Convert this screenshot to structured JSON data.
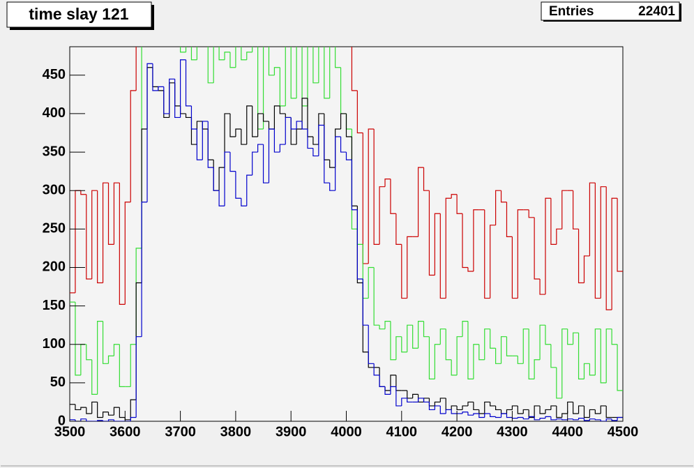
{
  "chart_data": {
    "type": "histogram",
    "title": "time slay 121",
    "stats": {
      "label": "Entries",
      "value": 22401
    },
    "bins": [
      3500,
      3510,
      3520,
      3530,
      3540,
      3550,
      3560,
      3570,
      3580,
      3590,
      3600,
      3610,
      3620,
      3630,
      3640,
      3650,
      3660,
      3670,
      3680,
      3690,
      3700,
      3710,
      3720,
      3730,
      3740,
      3750,
      3760,
      3770,
      3780,
      3790,
      3800,
      3810,
      3820,
      3830,
      3840,
      3850,
      3860,
      3870,
      3880,
      3890,
      3900,
      3910,
      3920,
      3930,
      3940,
      3950,
      3960,
      3970,
      3980,
      3990,
      4000,
      4010,
      4020,
      4030,
      4040,
      4050,
      4060,
      4070,
      4080,
      4090,
      4100,
      4110,
      4120,
      4130,
      4140,
      4150,
      4160,
      4170,
      4180,
      4190,
      4200,
      4210,
      4220,
      4230,
      4240,
      4250,
      4260,
      4270,
      4280,
      4290,
      4300,
      4310,
      4320,
      4330,
      4340,
      4350,
      4360,
      4370,
      4380,
      4390,
      4400,
      4410,
      4420,
      4430,
      4440,
      4450,
      4460,
      4470,
      4480,
      4490,
      4500
    ],
    "series": [
      {
        "color": "#cc0000",
        "values": [
          167,
          300,
          295,
          185,
          300,
          180,
          310,
          230,
          310,
          152,
          285,
          430,
          500,
          500,
          500,
          500,
          500,
          500,
          500,
          500,
          500,
          500,
          500,
          500,
          500,
          500,
          500,
          500,
          500,
          500,
          500,
          500,
          500,
          500,
          500,
          500,
          500,
          500,
          500,
          500,
          500,
          500,
          500,
          500,
          500,
          500,
          500,
          500,
          500,
          500,
          500,
          430,
          375,
          205,
          380,
          230,
          305,
          315,
          270,
          230,
          160,
          240,
          240,
          330,
          300,
          190,
          270,
          160,
          290,
          295,
          270,
          200,
          195,
          275,
          275,
          160,
          255,
          300,
          285,
          240,
          160,
          275,
          275,
          265,
          185,
          165,
          290,
          230,
          250,
          300,
          300,
          250,
          180,
          215,
          310,
          160,
          305,
          145,
          290,
          195
        ]
      },
      {
        "color": "#33dd33",
        "values": [
          155,
          60,
          100,
          80,
          35,
          130,
          75,
          85,
          100,
          45,
          45,
          100,
          225,
          500,
          500,
          500,
          500,
          500,
          500,
          500,
          480,
          500,
          470,
          500,
          500,
          440,
          500,
          470,
          480,
          460,
          490,
          470,
          480,
          500,
          380,
          500,
          450,
          460,
          410,
          500,
          420,
          500,
          410,
          500,
          440,
          500,
          420,
          500,
          460,
          400,
          380,
          250,
          230,
          160,
          200,
          125,
          120,
          130,
          80,
          110,
          90,
          125,
          95,
          130,
          110,
          55,
          100,
          120,
          80,
          60,
          110,
          130,
          55,
          100,
          80,
          120,
          95,
          75,
          110,
          85,
          85,
          75,
          120,
          55,
          80,
          125,
          100,
          70,
          30,
          120,
          100,
          115,
          55,
          75,
          60,
          120,
          50,
          120,
          100,
          40
        ]
      },
      {
        "color": "#000000",
        "values": [
          22,
          15,
          18,
          10,
          25,
          5,
          12,
          8,
          18,
          5,
          2,
          28,
          180,
          380,
          460,
          435,
          430,
          395,
          440,
          410,
          400,
          395,
          360,
          390,
          380,
          340,
          300,
          330,
          400,
          370,
          380,
          360,
          410,
          370,
          400,
          390,
          380,
          410,
          400,
          395,
          360,
          380,
          420,
          370,
          360,
          400,
          340,
          330,
          380,
          400,
          370,
          280,
          180,
          90,
          70,
          70,
          45,
          40,
          60,
          40,
          40,
          30,
          35,
          25,
          30,
          20,
          25,
          30,
          15,
          20,
          15,
          20,
          25,
          15,
          10,
          25,
          20,
          15,
          10,
          15,
          20,
          10,
          15,
          5,
          20,
          10,
          15,
          20,
          5,
          10,
          25,
          10,
          20,
          5,
          15,
          10,
          20,
          5,
          5,
          5
        ]
      },
      {
        "color": "#0000cc",
        "values": [
          2,
          0,
          3,
          0,
          0,
          1,
          0,
          2,
          0,
          0,
          0,
          5,
          110,
          285,
          465,
          430,
          435,
          400,
          445,
          395,
          470,
          410,
          380,
          340,
          390,
          330,
          300,
          280,
          350,
          325,
          290,
          280,
          320,
          350,
          360,
          310,
          380,
          350,
          360,
          395,
          380,
          390,
          380,
          355,
          345,
          385,
          310,
          300,
          370,
          350,
          340,
          275,
          185,
          125,
          75,
          60,
          45,
          35,
          45,
          20,
          30,
          25,
          25,
          30,
          25,
          15,
          20,
          10,
          15,
          10,
          10,
          12,
          8,
          10,
          5,
          10,
          6,
          5,
          10,
          5,
          4,
          5,
          3,
          6,
          2,
          4,
          6,
          2,
          3,
          2,
          3,
          2,
          4,
          1,
          3,
          2,
          0,
          3,
          1,
          5
        ]
      }
    ],
    "xlim": [
      3500,
      4500
    ],
    "ylim": [
      0,
      487
    ],
    "xticks": [
      3500,
      3600,
      3700,
      3800,
      3900,
      4000,
      4100,
      4200,
      4300,
      4400,
      4500
    ],
    "yticks": [
      0,
      50,
      100,
      150,
      200,
      250,
      300,
      350,
      400,
      450
    ]
  }
}
